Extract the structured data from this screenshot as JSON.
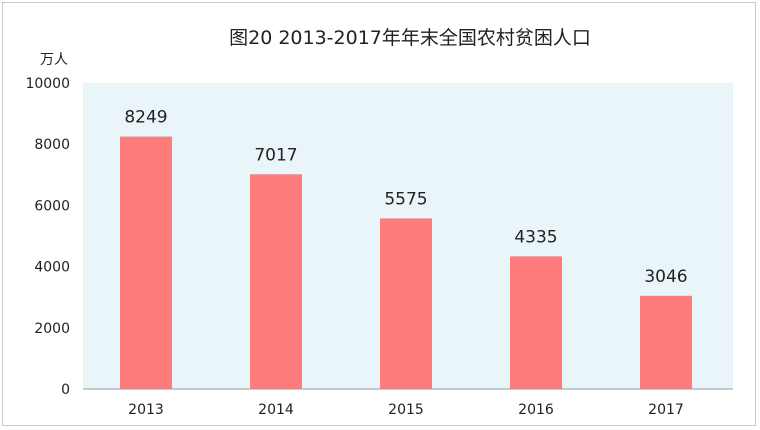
{
  "chart_data": {
    "type": "bar",
    "title": "图20    2013-2017年年末全国农村贫困人口",
    "ylabel": "万人",
    "xlabel": "",
    "categories": [
      "2013",
      "2014",
      "2015",
      "2016",
      "2017"
    ],
    "values": [
      8249,
      7017,
      5575,
      4335,
      3046
    ],
    "data_labels": [
      "8249",
      "7017",
      "5575",
      "4335",
      "3046"
    ],
    "yticks": [
      "0",
      "2000",
      "4000",
      "6000",
      "8000",
      "10000"
    ],
    "ylim": [
      0,
      10000
    ],
    "grid": false,
    "legend": "none",
    "colors": {
      "bar": "#ff7c7c",
      "plot_background": "#eaf5fa",
      "axis": "#9a9a9a",
      "text": "#222222"
    }
  }
}
